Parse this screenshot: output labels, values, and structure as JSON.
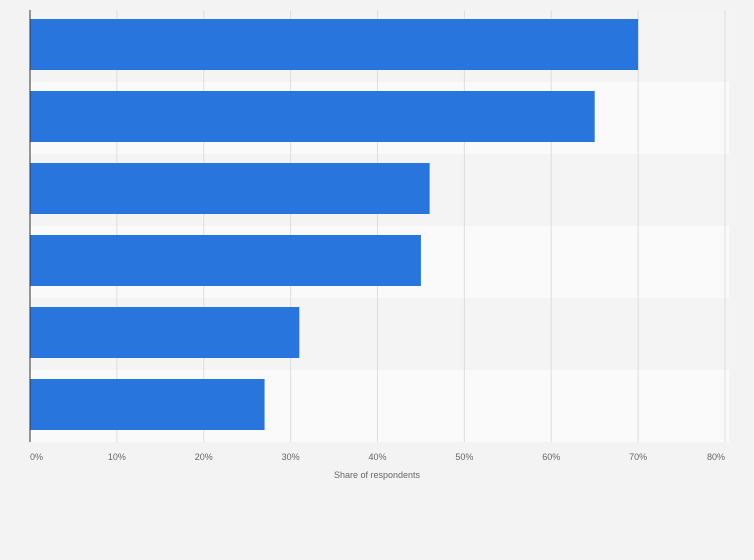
{
  "chart_data": {
    "type": "bar",
    "orientation": "horizontal",
    "categories": [
      "",
      "",
      "",
      "",
      "",
      ""
    ],
    "values": [
      70,
      65,
      46,
      45,
      31,
      27
    ],
    "title": "",
    "xlabel": "Share of respondents",
    "ylabel": "",
    "xlim": [
      0,
      80
    ],
    "x_ticks": [
      "0%",
      "10%",
      "20%",
      "30%",
      "40%",
      "50%",
      "60%",
      "70%",
      "80%"
    ],
    "grid": true,
    "bar_color": "#2876dd",
    "band_colors": [
      "#f4f4f4",
      "#fafafa"
    ]
  }
}
